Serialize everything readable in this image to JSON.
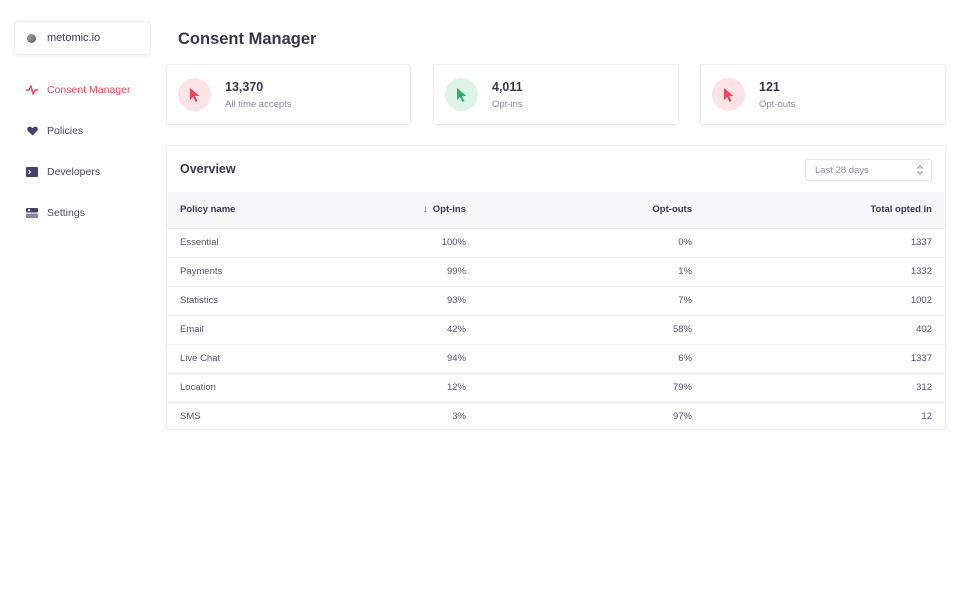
{
  "org": {
    "name": "metomic.io"
  },
  "nav": [
    {
      "label": "Consent Manager",
      "icon": "pulse-icon",
      "active": true
    },
    {
      "label": "Policies",
      "icon": "heart-icon",
      "active": false
    },
    {
      "label": "Developers",
      "icon": "terminal-icon",
      "active": false
    },
    {
      "label": "Settings",
      "icon": "toggle-icon",
      "active": false
    }
  ],
  "page": {
    "title": "Consent Manager"
  },
  "stats": [
    {
      "value": "13,370",
      "label": "All time accepts",
      "color": "red",
      "icon": "cursor-icon"
    },
    {
      "value": "4,011",
      "label": "Opt-ins",
      "color": "green",
      "icon": "cursor-icon"
    },
    {
      "value": "121",
      "label": "Opt-outs",
      "color": "red",
      "icon": "cursor-icon"
    }
  ],
  "overview": {
    "title": "Overview",
    "range": "Last 28 days",
    "columns": {
      "name": "Policy name",
      "optins": "Opt-ins",
      "optouts": "Opt-outs",
      "total": "Total opted in"
    },
    "rows": [
      {
        "name": "Essential",
        "optins": "100%",
        "optouts": "0%",
        "total": "1337"
      },
      {
        "name": "Payments",
        "optins": "99%",
        "optouts": "1%",
        "total": "1332"
      },
      {
        "name": "Statistics",
        "optins": "93%",
        "optouts": "7%",
        "total": "1002"
      },
      {
        "name": "Email",
        "optins": "42%",
        "optouts": "58%",
        "total": "402"
      },
      {
        "name": "Live Chat",
        "optins": "94%",
        "optouts": "6%",
        "total": "1337"
      },
      {
        "name": "Location",
        "optins": "12%",
        "optouts": "79%",
        "total": "312"
      },
      {
        "name": "SMS",
        "optins": "3%",
        "optouts": "97%",
        "total": "12"
      }
    ]
  },
  "colors": {
    "accent_red": "#e8495f",
    "accent_green": "#2bb36b",
    "text_dark": "#3b3553"
  }
}
